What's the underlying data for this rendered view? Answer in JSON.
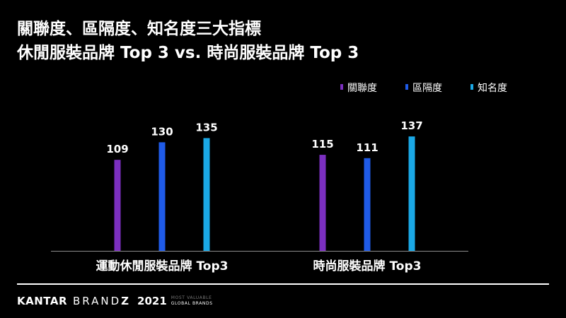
{
  "title": {
    "line1": "關聯度、區隔度、知名度三大指標",
    "line2": "休閒服裝品牌 Top 3 vs. 時尚服裝品牌 Top 3"
  },
  "colors": {
    "background": "#000000",
    "text": "#ffffff",
    "axis": "#8a8a8a"
  },
  "chart_data": {
    "type": "bar",
    "title": "關聯度、區隔度、知名度三大指標 休閒服裝品牌 Top 3 vs. 時尚服裝品牌 Top 3",
    "categories": [
      "運動休閒服裝品牌 Top3",
      "時尚服裝品牌 Top3"
    ],
    "series": [
      {
        "name": "關聯度",
        "color": "#7b2fbf",
        "values": [
          109,
          115
        ]
      },
      {
        "name": "區隔度",
        "color": "#1f5be8",
        "values": [
          130,
          111
        ]
      },
      {
        "name": "知名度",
        "color": "#1aa8e6",
        "values": [
          135,
          137
        ]
      }
    ],
    "show_data_labels": true,
    "legend_position": "top-right",
    "grid": false
  },
  "footer": {
    "kantar": "KANTAR",
    "brandz_prefix": "BRAND",
    "brandz_suffix": "Z",
    "year": "2021",
    "tag_line1": "MOST VALUABLE",
    "tag_line2": "GLOBAL BRANDS"
  }
}
